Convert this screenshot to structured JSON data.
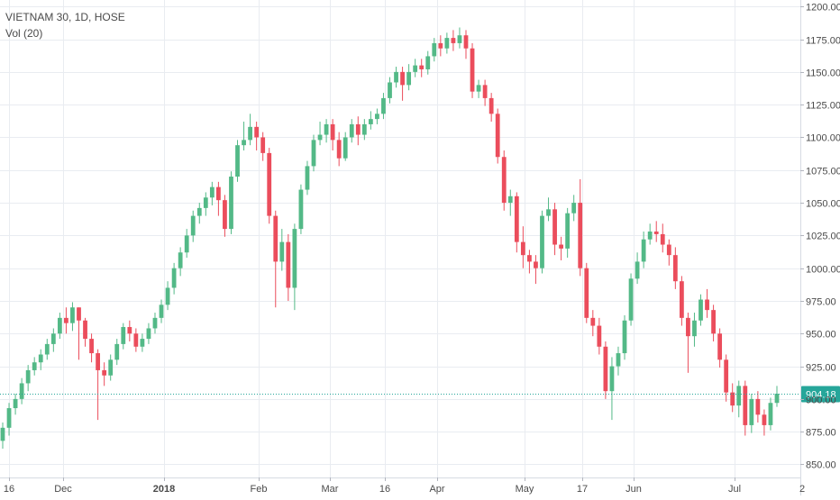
{
  "legend": {
    "symbol": "VIETNAM 30, 1D, HOSE",
    "volume": "Vol (20)"
  },
  "colors": {
    "up": "#53b987",
    "down": "#eb4d5c",
    "grid": "#e9ecf1",
    "last_price": "#26a69a",
    "axis_text": "#4a4a4a"
  },
  "chart_data": {
    "type": "candlestick",
    "title": "VIETNAM 30, 1D, HOSE",
    "indicator": "Vol (20)",
    "ylim": [
      840,
      1205
    ],
    "y_ticks": [
      "1200.00",
      "1175.00",
      "1150.00",
      "1125.00",
      "1100.00",
      "1075.00",
      "1050.00",
      "1025.00",
      "1000.00",
      "975.00",
      "950.00",
      "925.00",
      "900.00",
      "875.00",
      "850.00"
    ],
    "x_ticks": [
      "16",
      "Dec",
      "2018",
      "Feb",
      "Mar",
      "16",
      "Apr",
      "May",
      "17",
      "Jun",
      "Jul",
      "2"
    ],
    "last_price": "904.18",
    "candles": [
      [
        868,
        878,
        862,
        882
      ],
      [
        878,
        893,
        872,
        897
      ],
      [
        893,
        900,
        888,
        904
      ],
      [
        900,
        912,
        896,
        916
      ],
      [
        912,
        922,
        906,
        926
      ],
      [
        922,
        928,
        918,
        932
      ],
      [
        928,
        934,
        922,
        938
      ],
      [
        934,
        942,
        930,
        946
      ],
      [
        942,
        950,
        936,
        954
      ],
      [
        950,
        962,
        946,
        966
      ],
      [
        962,
        958,
        950,
        970
      ],
      [
        958,
        970,
        952,
        974
      ],
      [
        970,
        960,
        930,
        970
      ],
      [
        960,
        946,
        940,
        962
      ],
      [
        946,
        935,
        928,
        950
      ],
      [
        935,
        922,
        884,
        938
      ],
      [
        922,
        918,
        910,
        928
      ],
      [
        918,
        930,
        914,
        934
      ],
      [
        930,
        942,
        926,
        946
      ],
      [
        942,
        955,
        938,
        958
      ],
      [
        955,
        950,
        944,
        960
      ],
      [
        950,
        940,
        936,
        954
      ],
      [
        940,
        946,
        936,
        950
      ],
      [
        946,
        954,
        942,
        958
      ],
      [
        954,
        962,
        950,
        966
      ],
      [
        962,
        972,
        958,
        976
      ],
      [
        972,
        985,
        968,
        990
      ],
      [
        985,
        1000,
        980,
        1004
      ],
      [
        1000,
        1012,
        994,
        1016
      ],
      [
        1012,
        1025,
        1008,
        1030
      ],
      [
        1025,
        1040,
        1020,
        1044
      ],
      [
        1040,
        1046,
        1034,
        1050
      ],
      [
        1046,
        1054,
        1040,
        1058
      ],
      [
        1054,
        1062,
        1048,
        1066
      ],
      [
        1062,
        1052,
        1040,
        1066
      ],
      [
        1052,
        1030,
        1024,
        1056
      ],
      [
        1030,
        1070,
        1026,
        1074
      ],
      [
        1070,
        1094,
        1066,
        1098
      ],
      [
        1094,
        1098,
        1090,
        1112
      ],
      [
        1098,
        1108,
        1094,
        1118
      ],
      [
        1108,
        1100,
        1090,
        1112
      ],
      [
        1100,
        1088,
        1082,
        1104
      ],
      [
        1088,
        1040,
        1034,
        1092
      ],
      [
        1040,
        1005,
        970,
        1044
      ],
      [
        1005,
        1020,
        998,
        1030
      ],
      [
        1020,
        985,
        975,
        1026
      ],
      [
        985,
        1030,
        968,
        1034
      ],
      [
        1030,
        1060,
        1026,
        1064
      ],
      [
        1060,
        1078,
        1056,
        1082
      ],
      [
        1078,
        1098,
        1074,
        1102
      ],
      [
        1098,
        1102,
        1094,
        1112
      ],
      [
        1102,
        1110,
        1096,
        1114
      ],
      [
        1110,
        1098,
        1090,
        1114
      ],
      [
        1098,
        1084,
        1078,
        1104
      ],
      [
        1084,
        1100,
        1082,
        1104
      ],
      [
        1100,
        1110,
        1096,
        1114
      ],
      [
        1110,
        1102,
        1094,
        1116
      ],
      [
        1102,
        1110,
        1098,
        1114
      ],
      [
        1110,
        1114,
        1106,
        1120
      ],
      [
        1114,
        1118,
        1110,
        1122
      ],
      [
        1118,
        1130,
        1114,
        1134
      ],
      [
        1130,
        1142,
        1126,
        1146
      ],
      [
        1142,
        1150,
        1138,
        1154
      ],
      [
        1150,
        1140,
        1128,
        1154
      ],
      [
        1140,
        1150,
        1136,
        1156
      ],
      [
        1150,
        1155,
        1146,
        1160
      ],
      [
        1155,
        1152,
        1146,
        1160
      ],
      [
        1152,
        1162,
        1148,
        1166
      ],
      [
        1162,
        1172,
        1158,
        1176
      ],
      [
        1172,
        1168,
        1162,
        1178
      ],
      [
        1168,
        1176,
        1164,
        1180
      ],
      [
        1176,
        1172,
        1166,
        1182
      ],
      [
        1172,
        1178,
        1168,
        1184
      ],
      [
        1178,
        1168,
        1160,
        1182
      ],
      [
        1168,
        1135,
        1130,
        1172
      ],
      [
        1135,
        1140,
        1130,
        1144
      ],
      [
        1140,
        1130,
        1124,
        1144
      ],
      [
        1130,
        1118,
        1112,
        1134
      ],
      [
        1118,
        1085,
        1080,
        1122
      ],
      [
        1085,
        1050,
        1044,
        1090
      ],
      [
        1050,
        1055,
        1040,
        1060
      ],
      [
        1055,
        1020,
        1012,
        1058
      ],
      [
        1020,
        1010,
        1000,
        1032
      ],
      [
        1010,
        1005,
        996,
        1014
      ],
      [
        1005,
        1000,
        988,
        1010
      ],
      [
        1000,
        1040,
        996,
        1044
      ],
      [
        1040,
        1045,
        1036,
        1054
      ],
      [
        1045,
        1018,
        1010,
        1050
      ],
      [
        1018,
        1015,
        1006,
        1024
      ],
      [
        1015,
        1042,
        1008,
        1046
      ],
      [
        1042,
        1050,
        1036,
        1056
      ],
      [
        1050,
        1000,
        994,
        1068
      ],
      [
        1000,
        962,
        958,
        1004
      ],
      [
        962,
        956,
        948,
        968
      ],
      [
        956,
        940,
        934,
        962
      ],
      [
        940,
        906,
        900,
        944
      ],
      [
        906,
        925,
        884,
        932
      ],
      [
        925,
        935,
        918,
        940
      ],
      [
        935,
        960,
        930,
        964
      ],
      [
        960,
        992,
        956,
        996
      ],
      [
        992,
        1005,
        988,
        1012
      ],
      [
        1005,
        1022,
        1000,
        1028
      ],
      [
        1022,
        1028,
        1018,
        1034
      ],
      [
        1028,
        1026,
        1020,
        1036
      ],
      [
        1026,
        1018,
        1012,
        1034
      ],
      [
        1018,
        1010,
        1002,
        1022
      ],
      [
        1010,
        990,
        984,
        1016
      ],
      [
        990,
        962,
        956,
        994
      ],
      [
        962,
        948,
        920,
        966
      ],
      [
        948,
        960,
        940,
        966
      ],
      [
        960,
        976,
        956,
        980
      ],
      [
        976,
        968,
        962,
        984
      ],
      [
        968,
        950,
        944,
        972
      ],
      [
        950,
        930,
        924,
        954
      ],
      [
        930,
        905,
        898,
        934
      ],
      [
        905,
        895,
        890,
        912
      ],
      [
        895,
        910,
        886,
        914
      ],
      [
        910,
        880,
        872,
        914
      ],
      [
        880,
        900,
        874,
        904
      ],
      [
        900,
        888,
        882,
        906
      ],
      [
        888,
        880,
        872,
        892
      ],
      [
        880,
        897,
        876,
        901
      ],
      [
        897,
        904,
        894,
        910
      ]
    ]
  }
}
